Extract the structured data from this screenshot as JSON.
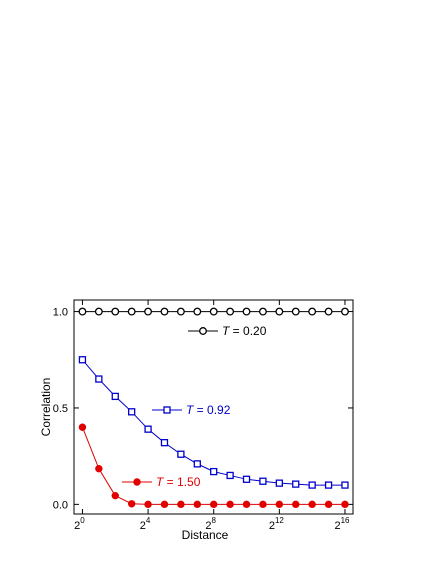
{
  "chart_data": {
    "type": "line",
    "xlabel": "Distance",
    "ylabel": "Correlation",
    "x_scale": "log2",
    "x": [
      1,
      2,
      4,
      8,
      16,
      32,
      64,
      128,
      256,
      512,
      1024,
      2048,
      4096,
      8192,
      16384,
      32768,
      65536
    ],
    "xlim": [
      0.7,
      92000
    ],
    "ylim": [
      -0.05,
      1.06
    ],
    "x_ticks": [
      {
        "value": 1,
        "base": "2",
        "exp": "0"
      },
      {
        "value": 16,
        "base": "2",
        "exp": "4"
      },
      {
        "value": 256,
        "base": "2",
        "exp": "8"
      },
      {
        "value": 4096,
        "base": "2",
        "exp": "12"
      },
      {
        "value": 65536,
        "base": "2",
        "exp": "16"
      }
    ],
    "y_ticks": [
      {
        "value": 0.0,
        "label": "0.0"
      },
      {
        "value": 0.5,
        "label": "0.5"
      },
      {
        "value": 1.0,
        "label": "1.0"
      }
    ],
    "grid": false,
    "series": [
      {
        "name": "T = 0.20",
        "name_var": "T",
        "name_rest": " = 0.20",
        "color": "#000000",
        "marker": "open-circle",
        "values": [
          1.0,
          1.0,
          1.0,
          1.0,
          1.0,
          1.0,
          1.0,
          1.0,
          1.0,
          1.0,
          1.0,
          1.0,
          1.0,
          1.0,
          1.0,
          1.0,
          1.0
        ]
      },
      {
        "name": "T = 0.92",
        "name_var": "T",
        "name_rest": " = 0.92",
        "color": "#0000cc",
        "marker": "open-square",
        "values": [
          0.75,
          0.65,
          0.56,
          0.48,
          0.39,
          0.32,
          0.26,
          0.21,
          0.17,
          0.15,
          0.13,
          0.12,
          0.11,
          0.105,
          0.1,
          0.1,
          0.1
        ]
      },
      {
        "name": "T = 1.50",
        "name_var": "T",
        "name_rest": " = 1.50",
        "color": "#e00000",
        "marker": "filled-circle",
        "values": [
          0.4,
          0.185,
          0.045,
          0.003,
          0.0,
          0.0,
          0.0,
          0.0,
          0.0,
          0.0,
          0.0,
          0.0,
          0.0,
          0.0,
          0.0,
          0.0,
          0.0
        ]
      }
    ]
  }
}
